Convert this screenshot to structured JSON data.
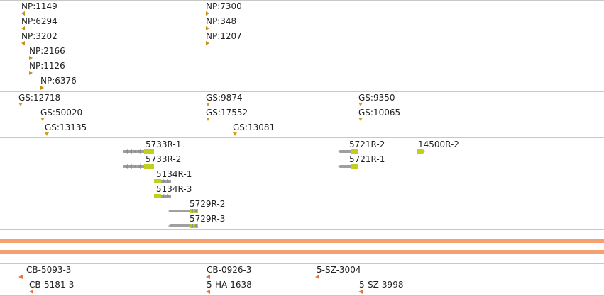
{
  "colors": {
    "divider": "#c8c8c8",
    "track": "#f4a070",
    "np_marker": "#c89010",
    "gs_marker": "#d4a017",
    "clone_marker": "#e8743b",
    "gene_body": "#a0a0a0",
    "gene_exon": "#c0d020"
  },
  "np_features": [
    {
      "label": "NP:1149",
      "dir": "leftgold"
    },
    {
      "label": "NP:6294",
      "dir": "leftgold"
    },
    {
      "label": "NP:3202",
      "dir": "leftgold"
    },
    {
      "label": "NP:2166",
      "dir": "right"
    },
    {
      "label": "NP:1126",
      "dir": "right"
    },
    {
      "label": "NP:6376",
      "dir": "right"
    },
    {
      "label": "NP:7300",
      "dir": "right"
    },
    {
      "label": "NP:348",
      "dir": "right"
    },
    {
      "label": "NP:1207",
      "dir": "right"
    }
  ],
  "gs_features": [
    {
      "label": "GS:12718"
    },
    {
      "label": "GS:50020"
    },
    {
      "label": "GS:13135"
    },
    {
      "label": "GS:9874"
    },
    {
      "label": "GS:17552"
    },
    {
      "label": "GS:13081"
    },
    {
      "label": "GS:9350"
    },
    {
      "label": "GS:10065"
    }
  ],
  "genes": [
    {
      "label": "5733R-1",
      "strand": "minus"
    },
    {
      "label": "5733R-2",
      "strand": "minus"
    },
    {
      "label": "5134R-1",
      "strand": "plus"
    },
    {
      "label": "5134R-3",
      "strand": "plus"
    },
    {
      "label": "5729R-2",
      "strand": "minus"
    },
    {
      "label": "5729R-3",
      "strand": "minus"
    },
    {
      "label": "5721R-2",
      "strand": "minus"
    },
    {
      "label": "5721R-1",
      "strand": "minus"
    },
    {
      "label": "14500R-2",
      "strand": "plus"
    }
  ],
  "clone_features": [
    {
      "label": "CB-5093-3"
    },
    {
      "label": "CB-5181-3"
    },
    {
      "label": "CB-0926-3"
    },
    {
      "label": "5-HA-1638"
    },
    {
      "label": "5-SZ-3004"
    },
    {
      "label": "5-SZ-3998"
    }
  ]
}
